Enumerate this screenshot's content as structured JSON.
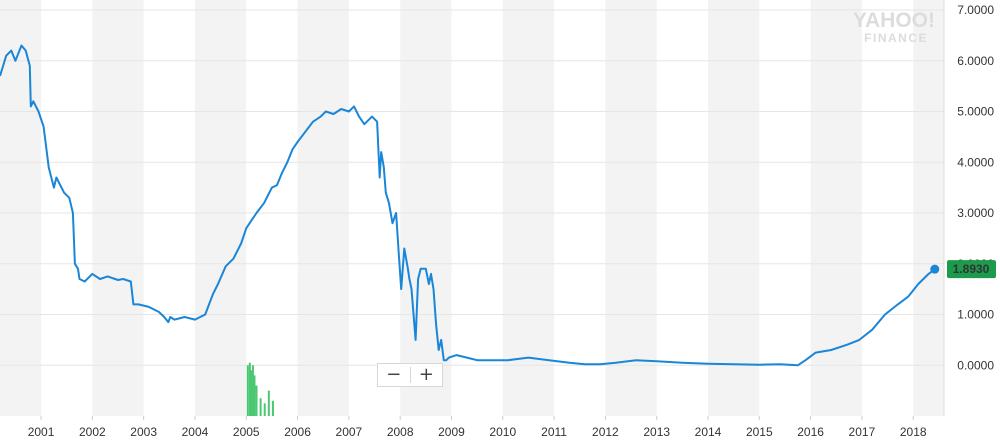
{
  "watermark": {
    "line1": "YAHOO!",
    "line2": "FINANCE"
  },
  "zoom": {
    "minus": "−",
    "plus": "+"
  },
  "chart_data": {
    "type": "line",
    "title": "",
    "xlabel": "",
    "ylabel": "",
    "ylim": [
      -1.0,
      7.0
    ],
    "xlim": [
      2000.2,
      2018.6
    ],
    "y_ticks": [
      "7.0000",
      "6.0000",
      "5.0000",
      "4.0000",
      "3.0000",
      "2.0000",
      "1.0000",
      "0.0000"
    ],
    "y_tick_values": [
      7,
      6,
      5,
      4,
      3,
      2,
      1,
      0
    ],
    "x_ticks": [
      "2001",
      "2002",
      "2003",
      "2004",
      "2005",
      "2006",
      "2007",
      "2008",
      "2009",
      "2010",
      "2011",
      "2012",
      "2013",
      "2014",
      "2015",
      "2016",
      "2017",
      "2018"
    ],
    "x_tick_values": [
      2001,
      2002,
      2003,
      2004,
      2005,
      2006,
      2007,
      2008,
      2009,
      2010,
      2011,
      2012,
      2013,
      2014,
      2015,
      2016,
      2017,
      2018
    ],
    "grid": "alternating vertical bands, horizontal gridlines",
    "last_value_label": "1.8930",
    "line_color": "#1a86d8",
    "label_color": "#1b9b4b",
    "volume_color": "#4cc773",
    "series": [
      {
        "x": [
          2000.2,
          2000.32,
          2000.42,
          2000.5,
          2000.62,
          2000.7,
          2000.78,
          2000.8,
          2000.85,
          2000.95,
          2001.05,
          2001.15,
          2001.25,
          2001.3,
          2001.45,
          2001.55,
          2001.62,
          2001.66,
          2001.72,
          2001.75,
          2001.85,
          2002.0,
          2002.15,
          2002.3,
          2002.5,
          2002.6,
          2002.75,
          2002.8,
          2002.9,
          2003.1,
          2003.3,
          2003.4,
          2003.48,
          2003.52,
          2003.6,
          2003.8,
          2004.0,
          2004.2,
          2004.35,
          2004.45,
          2004.6,
          2004.75,
          2004.9,
          2005.0,
          2005.1,
          2005.2,
          2005.35,
          2005.5,
          2005.6,
          2005.7,
          2005.8,
          2005.9,
          2006.0,
          2006.15,
          2006.3,
          2006.45,
          2006.55,
          2006.7,
          2006.85,
          2007.0,
          2007.1,
          2007.2,
          2007.3,
          2007.45,
          2007.55,
          2007.6,
          2007.63,
          2007.68,
          2007.72,
          2007.78,
          2007.85,
          2007.92,
          2007.98,
          2008.02,
          2008.08,
          2008.15,
          2008.18,
          2008.22,
          2008.3,
          2008.35,
          2008.4,
          2008.5,
          2008.56,
          2008.6,
          2008.65,
          2008.7,
          2008.75,
          2008.8,
          2008.85,
          2008.9,
          2008.95,
          2009.1,
          2009.3,
          2009.5,
          2009.8,
          2010.1,
          2010.5,
          2010.9,
          2011.3,
          2011.6,
          2011.9,
          2012.2,
          2012.6,
          2013.0,
          2013.5,
          2014.0,
          2014.5,
          2015.0,
          2015.4,
          2015.75,
          2015.9,
          2016.1,
          2016.4,
          2016.7,
          2016.95,
          2017.2,
          2017.45,
          2017.7,
          2017.9,
          2018.1,
          2018.3,
          2018.42
        ],
        "values": [
          5.7,
          6.1,
          6.2,
          6.0,
          6.3,
          6.2,
          5.9,
          5.1,
          5.2,
          5.0,
          4.7,
          3.9,
          3.5,
          3.7,
          3.4,
          3.3,
          3.0,
          2.0,
          1.9,
          1.7,
          1.65,
          1.8,
          1.7,
          1.75,
          1.68,
          1.7,
          1.65,
          1.2,
          1.2,
          1.15,
          1.05,
          0.95,
          0.85,
          0.95,
          0.9,
          0.95,
          0.9,
          1.0,
          1.4,
          1.6,
          1.95,
          2.1,
          2.4,
          2.7,
          2.85,
          3.0,
          3.2,
          3.5,
          3.55,
          3.8,
          4.0,
          4.25,
          4.4,
          4.6,
          4.8,
          4.9,
          5.0,
          4.95,
          5.05,
          5.0,
          5.1,
          4.9,
          4.75,
          4.9,
          4.8,
          3.7,
          4.2,
          3.9,
          3.4,
          3.2,
          2.8,
          3.0,
          2.1,
          1.5,
          2.3,
          1.9,
          1.7,
          1.5,
          0.5,
          1.7,
          1.9,
          1.9,
          1.6,
          1.8,
          1.5,
          0.8,
          0.3,
          0.5,
          0.1,
          0.1,
          0.15,
          0.2,
          0.15,
          0.1,
          0.1,
          0.1,
          0.15,
          0.1,
          0.05,
          0.02,
          0.02,
          0.05,
          0.1,
          0.08,
          0.05,
          0.03,
          0.02,
          0.01,
          0.02,
          0.0,
          0.1,
          0.25,
          0.3,
          0.4,
          0.5,
          0.7,
          1.0,
          1.2,
          1.35,
          1.6,
          1.8,
          1.893
        ]
      }
    ],
    "volume": {
      "x": [
        2005.03,
        2005.07,
        2005.1,
        2005.13,
        2005.16,
        2005.2,
        2005.28,
        2005.36,
        2005.44,
        2005.52
      ],
      "values": [
        1.0,
        1.05,
        0.9,
        1.0,
        0.8,
        0.6,
        0.35,
        0.25,
        0.5,
        0.3
      ]
    }
  }
}
